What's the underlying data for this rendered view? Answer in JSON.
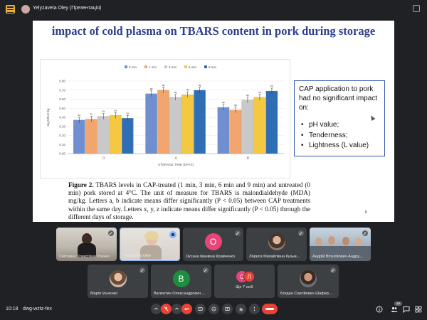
{
  "window": {
    "presenter_label": "Yelyzaveta Oley (Презентація)"
  },
  "slide": {
    "title": "impact of cold plasma on TBARS content in pork during storage",
    "page_number": "8",
    "caption_bold": "Figure 2.",
    "caption_text": " TBARS levels in CAP-treated (1 min, 3 min, 6 min and 9 min) and untreated (0 min) pork stored at 4°C. The unit of measure for TBARS is malondialdehyde (MDA) mg/kg. Letters a, b indicate means differ significantly (P < 0.05) between CAP treatments within the same day. Letters x, y, z indicate means differ significantly (P < 0.05) through the different days of storage.",
    "info_box": {
      "text": "CAP application to pork had no significant impact on:",
      "items": [
        "pH value;",
        "Tenderness;",
        "Lightness (L value)"
      ]
    }
  },
  "chart_data": {
    "type": "bar",
    "xlabel": "STORAGE TIME (DAYS)",
    "ylabel": "mg MDA/ kg",
    "ylim": [
      0,
      0.8
    ],
    "yticks": [
      "0.00",
      "0.10",
      "0.20",
      "0.30",
      "0.40",
      "0.50",
      "0.60",
      "0.70",
      "0.80"
    ],
    "categories": [
      "0",
      "4",
      "8"
    ],
    "legend_position": "top",
    "grid": true,
    "series": [
      {
        "name": "0 min",
        "color": "#6f8fd0",
        "values": [
          0.37,
          0.66,
          0.51
        ],
        "labels": [
          "ax",
          "ay",
          "ay"
        ]
      },
      {
        "name": "1 min",
        "color": "#f2a66e",
        "values": [
          0.38,
          0.7,
          0.48
        ],
        "labels": [
          "ax",
          "ay",
          "ay"
        ]
      },
      {
        "name": "3 min",
        "color": "#c9c9c9",
        "values": [
          0.41,
          0.62,
          0.59
        ],
        "labels": [
          "ax",
          "ay",
          "ay"
        ]
      },
      {
        "name": "6 min",
        "color": "#f5c842",
        "values": [
          0.42,
          0.65,
          0.62
        ],
        "labels": [
          "ax",
          "ay",
          "ay"
        ]
      },
      {
        "name": "9 min",
        "color": "#2f6eb5",
        "values": [
          0.39,
          0.7,
          0.69
        ],
        "labels": [
          "ax",
          "ay",
          "by"
        ]
      }
    ]
  },
  "participants_row1": [
    {
      "name": "Світлана Олексіївна Усенко",
      "kind": "photo"
    },
    {
      "name": "Yelyzaveta Oley",
      "kind": "photo"
    },
    {
      "name": "Оксана Іванівна Кравченко",
      "kind": "avatar",
      "initial": "О",
      "color": "#e8457a"
    },
    {
      "name": "Лариса Михайлівна Кузьм...",
      "kind": "avatar-photo"
    },
    {
      "name": "Андрій Віталійович Андру...",
      "kind": "photo"
    }
  ],
  "participants_row2": [
    {
      "name": "Марія Ільченко",
      "kind": "avatar-photo"
    },
    {
      "name": "Валентин Олександрович ...",
      "kind": "avatar",
      "initial": "В",
      "color": "#1e8e3e"
    },
    {
      "name": "Ще 7 осіб",
      "kind": "group",
      "initials": [
        "С",
        "Л"
      ]
    },
    {
      "name": "Богдан Сергійович Шафер...",
      "kind": "avatar-photo"
    }
  ],
  "bottom_bar": {
    "time": "10:18",
    "meeting_code": "dwg-wztz-fex",
    "participants_count": "16"
  },
  "colors": {
    "background": "#202124",
    "tile": "#3c4043",
    "accent_red": "#ea4335",
    "title_blue": "#2e3f8f"
  }
}
